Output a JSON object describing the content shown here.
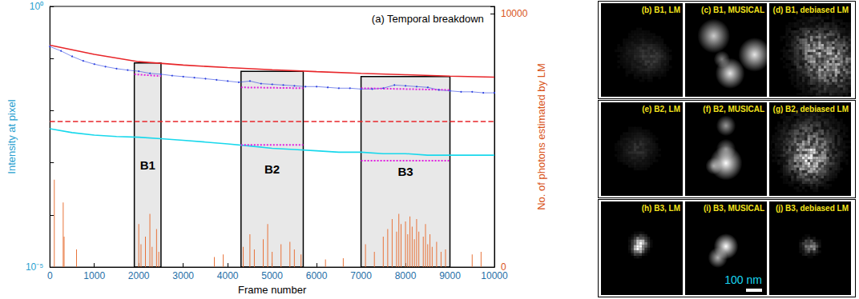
{
  "chart_data": {
    "type": "line",
    "title": "(a) Temporal breakdown",
    "x_label": "Frame number",
    "y_label": "Intensity at pixel",
    "y2_label": "No. of photons estimated by LM",
    "log": "y",
    "grid": false,
    "xlim": [
      0,
      10000
    ],
    "xticks": [
      0,
      1000,
      2000,
      3000,
      4000,
      5000,
      6000,
      7000,
      8000,
      9000,
      10000
    ],
    "ylim": [
      1e-05,
      1
    ],
    "yticks": [
      {
        "value": 1e-05,
        "label": "10⁻⁵"
      },
      {
        "value": 1,
        "label": "10⁰"
      }
    ],
    "y2lim": [
      0,
      10300
    ],
    "y2ticks": [
      0,
      10000
    ],
    "series": [
      {
        "type": "line",
        "color": "#2a3fe0",
        "marker": "dot",
        "line_style": "solid",
        "x": [
          0,
          250,
          500,
          750,
          1000,
          1250,
          1500,
          1750,
          2000,
          2250,
          2500,
          2750,
          3000,
          3250,
          3500,
          3750,
          4000,
          4250,
          4500,
          4750,
          5000,
          5250,
          5500,
          5750,
          6000,
          6250,
          6500,
          6750,
          7000,
          7250,
          7500,
          7750,
          8000,
          8250,
          8500,
          8750,
          9000,
          9250,
          9500,
          9750,
          10000
        ],
        "values": [
          0.17,
          0.14,
          0.11,
          0.09,
          0.078,
          0.07,
          0.064,
          0.06,
          0.057,
          0.052,
          0.05,
          0.047,
          0.045,
          0.043,
          0.041,
          0.039,
          0.037,
          0.035,
          0.037,
          0.033,
          0.032,
          0.031,
          0.03,
          0.029,
          0.029,
          0.028,
          0.027,
          0.027,
          0.026,
          0.026,
          0.027,
          0.031,
          0.03,
          0.029,
          0.028,
          0.025,
          0.024,
          0.023,
          0.023,
          0.022,
          0.022
        ]
      },
      {
        "type": "line",
        "color": "#e8262a",
        "marker": "none",
        "line_style": "solid",
        "x": [
          0,
          1000,
          2000,
          3000,
          4000,
          5000,
          6000,
          7000,
          8000,
          9000,
          10000
        ],
        "values": [
          0.18,
          0.12,
          0.087,
          0.075,
          0.067,
          0.061,
          0.056,
          0.052,
          0.049,
          0.046,
          0.044
        ]
      },
      {
        "type": "line",
        "color": "#e8262a",
        "marker": "none",
        "line_style": "dashed",
        "x": [
          0,
          10000
        ],
        "values": [
          0.0062,
          0.0062
        ]
      },
      {
        "type": "line",
        "color": "#18d8ec",
        "marker": "none",
        "line_style": "solid",
        "x": [
          0,
          500,
          1000,
          1500,
          2000,
          2500,
          3000,
          3500,
          4000,
          4500,
          5000,
          5500,
          6000,
          6500,
          7000,
          7500,
          8000,
          8500,
          9000,
          9500,
          10000
        ],
        "values": [
          0.0045,
          0.0038,
          0.0034,
          0.0032,
          0.0031,
          0.0029,
          0.0027,
          0.0025,
          0.0023,
          0.0021,
          0.0019,
          0.0018,
          0.0017,
          0.0016,
          0.0016,
          0.0015,
          0.0015,
          0.0014,
          0.0014,
          0.0014,
          0.0014
        ]
      },
      {
        "type": "line",
        "color": "#e020e0",
        "marker": "none",
        "line_style": "dotted",
        "x": [
          1900,
          2500
        ],
        "values": [
          0.05,
          0.046
        ]
      },
      {
        "type": "line",
        "color": "#e020e0",
        "marker": "none",
        "line_style": "dotted",
        "x": [
          4300,
          5700
        ],
        "values": [
          0.028,
          0.027
        ]
      },
      {
        "type": "line",
        "color": "#e020e0",
        "marker": "none",
        "line_style": "dotted",
        "x": [
          7000,
          9000
        ],
        "values": [
          0.027,
          0.025
        ]
      },
      {
        "type": "line",
        "color": "#e020e0",
        "marker": "none",
        "line_style": "dotted",
        "x": [
          4300,
          5700
        ],
        "values": [
          0.0022,
          0.0022
        ]
      },
      {
        "type": "line",
        "color": "#e020e0",
        "marker": "none",
        "line_style": "dotted",
        "x": [
          7000,
          9000
        ],
        "values": [
          0.0011,
          0.0011
        ]
      },
      {
        "type": "bar",
        "color": "#e8733a",
        "axis": "y2",
        "x": [
          100,
          300,
          320,
          600,
          2000,
          2050,
          2150,
          2250,
          2300,
          2400,
          2450,
          3700,
          3900,
          4350,
          4500,
          4600,
          4800,
          4900,
          5000,
          5200,
          5400,
          5500,
          5650,
          6200,
          6600,
          7100,
          7300,
          7500,
          7600,
          7700,
          7800,
          7850,
          7900,
          8000,
          8050,
          8100,
          8150,
          8200,
          8250,
          8300,
          8400,
          8450,
          8500,
          8550,
          8600,
          8700,
          8800,
          8900,
          9500,
          9700
        ],
        "values": [
          3450,
          2550,
          1200,
          700,
          1700,
          900,
          1200,
          2100,
          800,
          1500,
          600,
          400,
          500,
          800,
          1300,
          700,
          1100,
          1700,
          600,
          900,
          1000,
          700,
          500,
          300,
          350,
          900,
          600,
          1200,
          1500,
          1900,
          1400,
          2100,
          1700,
          1800,
          1300,
          2000,
          1600,
          1100,
          1900,
          1400,
          1200,
          1700,
          900,
          1300,
          800,
          1000,
          600,
          700,
          500,
          600
        ]
      }
    ],
    "regions": [
      {
        "label": "B1",
        "x": [
          1900,
          2500
        ],
        "top": 0.082
      },
      {
        "label": "B2",
        "x": [
          4300,
          5700
        ],
        "top": 0.057
      },
      {
        "label": "B3",
        "x": [
          7000,
          9000
        ],
        "top": 0.045
      }
    ]
  },
  "panels": [
    {
      "label": "(b) B1, LM"
    },
    {
      "label": "(c) B1, MUSICAL"
    },
    {
      "label": "(d) B1, debiased LM"
    },
    {
      "label": "(e) B2, LM"
    },
    {
      "label": "(f) B2, MUSICAL"
    },
    {
      "label": "(g) B2, debiased LM"
    },
    {
      "label": "(h) B3, LM"
    },
    {
      "label": "(i) B3, MUSICAL"
    },
    {
      "label": "(j) B3, debiased LM"
    }
  ],
  "scale_bar": {
    "label": "100 nm"
  }
}
